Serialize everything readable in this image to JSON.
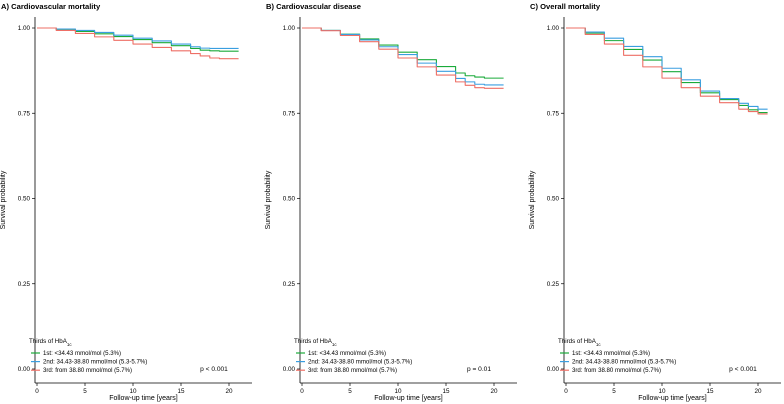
{
  "chart_data": [
    {
      "type": "line",
      "title": "A) Cardiovascular mortality",
      "xlabel": "Follow-up time [years]",
      "ylabel": "Survival probability",
      "xlim": [
        0,
        21
      ],
      "ylim": [
        0,
        1
      ],
      "xticks": [
        "0",
        "5",
        "10",
        "15",
        "20"
      ],
      "xtick_values": [
        0,
        5,
        10,
        15,
        20
      ],
      "yticks": [
        "0.00",
        "0.25",
        "0.50",
        "0.75",
        "1.00"
      ],
      "ytick_values": [
        0,
        0.25,
        0.5,
        0.75,
        1.0
      ],
      "legend_title_main": "Thirds of HbA",
      "legend_title_sub": "1c",
      "annotation": "p < 0.001",
      "series": [
        {
          "name": "1st: <34.43 mmol/mol (5.3%)",
          "color": "#1aaa3a",
          "x": [
            0,
            2,
            4,
            6,
            8,
            10,
            12,
            14,
            16,
            17,
            18,
            19,
            20,
            21
          ],
          "y": [
            1.0,
            0.996,
            0.99,
            0.983,
            0.975,
            0.966,
            0.957,
            0.948,
            0.94,
            0.935,
            0.933,
            0.932,
            0.932,
            0.932
          ]
        },
        {
          "name": "2nd: 34.43-38.80 mmol/mol (5.3-5.7%)",
          "color": "#3a9ee0",
          "x": [
            0,
            2,
            4,
            6,
            8,
            10,
            12,
            14,
            16,
            17,
            18,
            19,
            20,
            21
          ],
          "y": [
            1.0,
            0.997,
            0.993,
            0.987,
            0.979,
            0.97,
            0.962,
            0.953,
            0.945,
            0.941,
            0.94,
            0.94,
            0.94,
            0.94
          ]
        },
        {
          "name": "3rd: from 38.80 mmol/mol (5.7%)",
          "color": "#ee6f66",
          "x": [
            0,
            2,
            4,
            6,
            8,
            10,
            12,
            14,
            16,
            17,
            18,
            19,
            20,
            21
          ],
          "y": [
            1.0,
            0.993,
            0.984,
            0.974,
            0.964,
            0.953,
            0.943,
            0.933,
            0.925,
            0.918,
            0.912,
            0.91,
            0.91,
            0.91
          ]
        }
      ]
    },
    {
      "type": "line",
      "title": "B) Cardiovascular disease",
      "xlabel": "Follow-up time [years]",
      "ylabel": "Survival probability",
      "xlim": [
        0,
        21
      ],
      "ylim": [
        0,
        1
      ],
      "xticks": [
        "0",
        "5",
        "10",
        "15",
        "20"
      ],
      "xtick_values": [
        0,
        5,
        10,
        15,
        20
      ],
      "yticks": [
        "0.00",
        "0.25",
        "0.50",
        "0.75",
        "1.00"
      ],
      "ytick_values": [
        0,
        0.25,
        0.5,
        0.75,
        1.0
      ],
      "legend_title_main": "Thirds of HbA",
      "legend_title_sub": "1c",
      "annotation": "p = 0.01",
      "series": [
        {
          "name": "1st: <34.43 mmol/mol (5.3%)",
          "color": "#1aaa3a",
          "x": [
            0,
            2,
            4,
            6,
            8,
            10,
            12,
            14,
            16,
            17,
            18,
            19,
            20,
            21
          ],
          "y": [
            1.0,
            0.993,
            0.982,
            0.968,
            0.95,
            0.929,
            0.907,
            0.887,
            0.868,
            0.86,
            0.856,
            0.853,
            0.853,
            0.853
          ]
        },
        {
          "name": "2nd: 34.43-38.80 mmol/mol (5.3-5.7%)",
          "color": "#3a9ee0",
          "x": [
            0,
            2,
            4,
            6,
            8,
            10,
            12,
            14,
            16,
            17,
            18,
            19,
            20,
            21
          ],
          "y": [
            1.0,
            0.993,
            0.981,
            0.965,
            0.945,
            0.922,
            0.897,
            0.873,
            0.852,
            0.842,
            0.835,
            0.833,
            0.833,
            0.833
          ]
        },
        {
          "name": "3rd: from 38.80 mmol/mol (5.7%)",
          "color": "#ee6f66",
          "x": [
            0,
            2,
            4,
            6,
            8,
            10,
            12,
            14,
            16,
            17,
            18,
            19,
            20,
            21
          ],
          "y": [
            1.0,
            0.992,
            0.978,
            0.96,
            0.938,
            0.912,
            0.886,
            0.862,
            0.842,
            0.832,
            0.825,
            0.823,
            0.823,
            0.823
          ]
        }
      ]
    },
    {
      "type": "line",
      "title": "C) Overall mortality",
      "xlabel": "Follow-up time [years]",
      "ylabel": "Survival probability",
      "xlim": [
        0,
        21
      ],
      "ylim": [
        0,
        1
      ],
      "xticks": [
        "0",
        "5",
        "10",
        "15",
        "20"
      ],
      "xtick_values": [
        0,
        5,
        10,
        15,
        20
      ],
      "yticks": [
        "0.00",
        "0.25",
        "0.50",
        "0.75",
        "1.00"
      ],
      "ytick_values": [
        0,
        0.25,
        0.5,
        0.75,
        1.0
      ],
      "legend_title_main": "Thirds of HbA",
      "legend_title_sub": "1c",
      "annotation": "p < 0.001",
      "series": [
        {
          "name": "1st: <34.43 mmol/mol (5.3%)",
          "color": "#1aaa3a",
          "x": [
            0,
            2,
            4,
            6,
            8,
            10,
            12,
            14,
            16,
            18,
            19,
            20,
            21
          ],
          "y": [
            1.0,
            0.985,
            0.963,
            0.937,
            0.906,
            0.872,
            0.84,
            0.81,
            0.79,
            0.773,
            0.76,
            0.752,
            0.752
          ]
        },
        {
          "name": "2nd: 34.43-38.80 mmol/mol (5.3-5.7%)",
          "color": "#3a9ee0",
          "x": [
            0,
            2,
            4,
            6,
            8,
            10,
            12,
            14,
            16,
            18,
            19,
            20,
            21
          ],
          "y": [
            1.0,
            0.988,
            0.97,
            0.946,
            0.916,
            0.882,
            0.848,
            0.815,
            0.793,
            0.779,
            0.77,
            0.762,
            0.762
          ]
        },
        {
          "name": "3rd: from 38.80 mmol/mol (5.7%)",
          "color": "#ee6f66",
          "x": [
            0,
            2,
            4,
            6,
            8,
            10,
            12,
            14,
            16,
            18,
            19,
            20,
            21
          ],
          "y": [
            1.0,
            0.981,
            0.953,
            0.92,
            0.886,
            0.853,
            0.825,
            0.8,
            0.781,
            0.762,
            0.755,
            0.748,
            0.748
          ]
        }
      ]
    }
  ]
}
